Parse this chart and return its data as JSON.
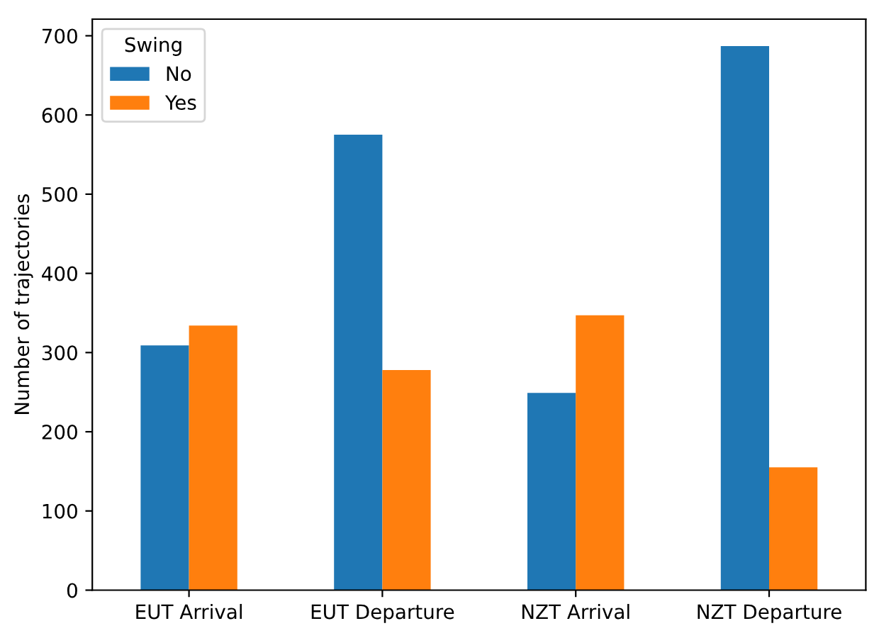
{
  "chart_data": {
    "type": "bar",
    "ylabel": "Number of trajectories",
    "legend_title": "Swing",
    "categories": [
      "EUT Arrival",
      "EUT Departure",
      "NZT Arrival",
      "NZT Departure"
    ],
    "series": [
      {
        "name": "No",
        "color": "#1f77b4",
        "values": [
          309,
          575,
          249,
          687
        ]
      },
      {
        "name": "Yes",
        "color": "#ff7f0e",
        "values": [
          334,
          278,
          347,
          155
        ]
      }
    ],
    "ylim": [
      0,
      721
    ],
    "yticks": [
      0,
      100,
      200,
      300,
      400,
      500,
      600,
      700
    ],
    "grid": false,
    "legend": "top left"
  }
}
